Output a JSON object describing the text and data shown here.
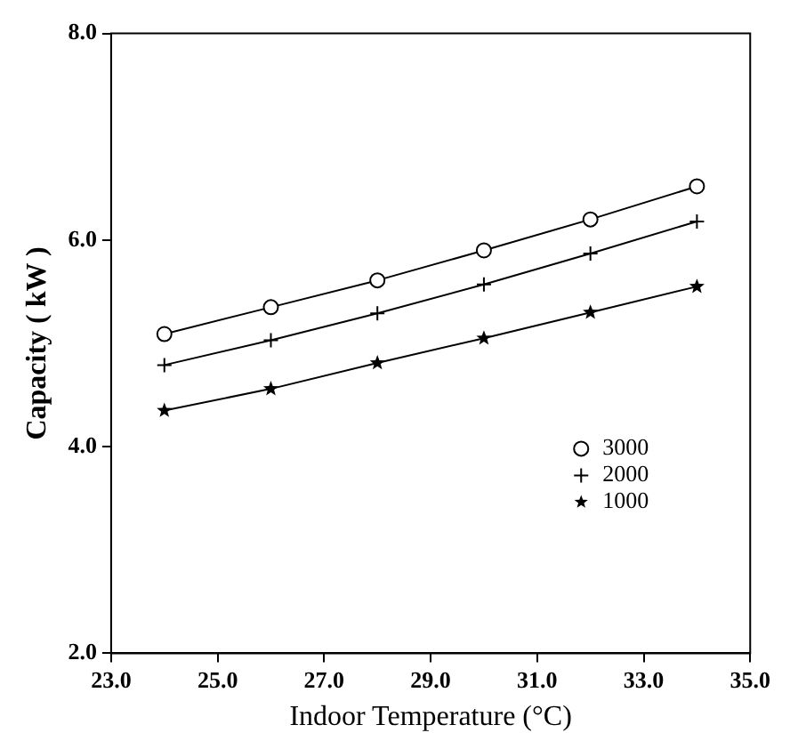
{
  "chart_data": {
    "type": "line",
    "xlabel": "Indoor Temperature (°C)",
    "ylabel": "Capacity ( kW )",
    "xlim": [
      23,
      35
    ],
    "xticks": [
      {
        "value": 23,
        "label": "23.0"
      },
      {
        "value": 25,
        "label": "25.0"
      },
      {
        "value": 27,
        "label": "27.0"
      },
      {
        "value": 29,
        "label": "29.0"
      },
      {
        "value": 31,
        "label": "31.0"
      },
      {
        "value": 33,
        "label": "33.0"
      },
      {
        "value": 35,
        "label": "35.0"
      }
    ],
    "ylim": [
      2,
      8
    ],
    "yticks": [
      {
        "value": 2,
        "label": "2.0"
      },
      {
        "value": 4,
        "label": "4.0"
      },
      {
        "value": 6,
        "label": "6.0"
      },
      {
        "value": 8,
        "label": "8.0"
      }
    ],
    "x": [
      24,
      26,
      28,
      30,
      32,
      34
    ],
    "series": [
      {
        "name": "3000",
        "color": "#000000",
        "marker": "circle",
        "values": [
          5.09,
          5.35,
          5.61,
          5.9,
          6.2,
          6.52
        ]
      },
      {
        "name": "2000",
        "color": "#000000",
        "marker": "cross",
        "values": [
          4.79,
          5.03,
          5.29,
          5.57,
          5.87,
          6.18
        ]
      },
      {
        "name": "1000",
        "color": "#000000",
        "marker": "star",
        "values": [
          4.35,
          4.56,
          4.81,
          5.05,
          5.3,
          5.55
        ]
      }
    ],
    "grid": false,
    "legend": "bottom right",
    "line_style": "solid"
  }
}
